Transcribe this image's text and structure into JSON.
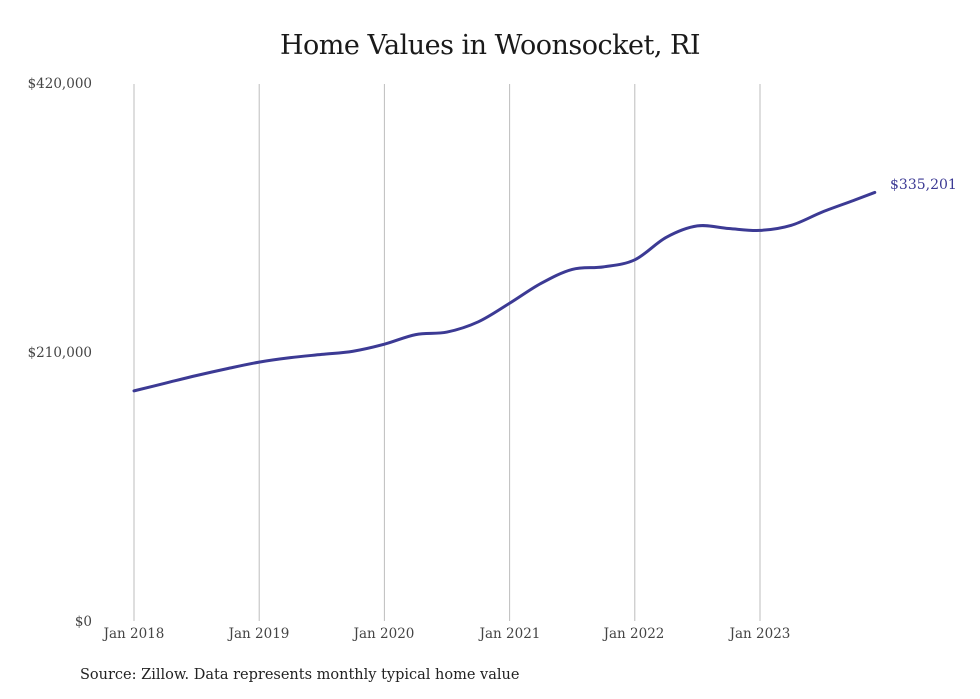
{
  "title": "Home Values in Woonsocket, RI",
  "source": "Source: Zillow. Data represents monthly typical home value",
  "end_label": "$335,201",
  "y_ticks": [
    "$420,000",
    "$210,000",
    "$0"
  ],
  "x_ticks": [
    "Jan 2018",
    "Jan 2019",
    "Jan 2020",
    "Jan 2021",
    "Jan 2022",
    "Jan 2023"
  ],
  "colors": {
    "line": "#3c3a94",
    "grid": "#bdbdbd",
    "text": "#444444"
  },
  "chart_data": {
    "type": "line",
    "title": "Home Values in Woonsocket, RI",
    "xlabel": "",
    "ylabel": "",
    "ylim": [
      0,
      420000
    ],
    "yticks": [
      0,
      210000,
      420000
    ],
    "grid": "vertical gridlines at each January",
    "legend": "none",
    "annotation": "$335,201 at final point",
    "x": [
      "2018-01",
      "2018-04",
      "2018-07",
      "2018-10",
      "2019-01",
      "2019-04",
      "2019-07",
      "2019-10",
      "2020-01",
      "2020-04",
      "2020-07",
      "2020-10",
      "2021-01",
      "2021-04",
      "2021-07",
      "2021-10",
      "2022-01",
      "2022-04",
      "2022-07",
      "2022-10",
      "2023-01",
      "2023-04",
      "2023-07",
      "2023-10",
      "2023-12"
    ],
    "series": [
      {
        "name": "Typical home value",
        "values": [
          180000,
          186000,
          192000,
          197500,
          202500,
          206000,
          208500,
          211000,
          216500,
          224000,
          226000,
          234000,
          248500,
          264000,
          275000,
          277000,
          282500,
          300000,
          309000,
          307000,
          305500,
          309500,
          320000,
          329000,
          335201
        ]
      }
    ]
  }
}
